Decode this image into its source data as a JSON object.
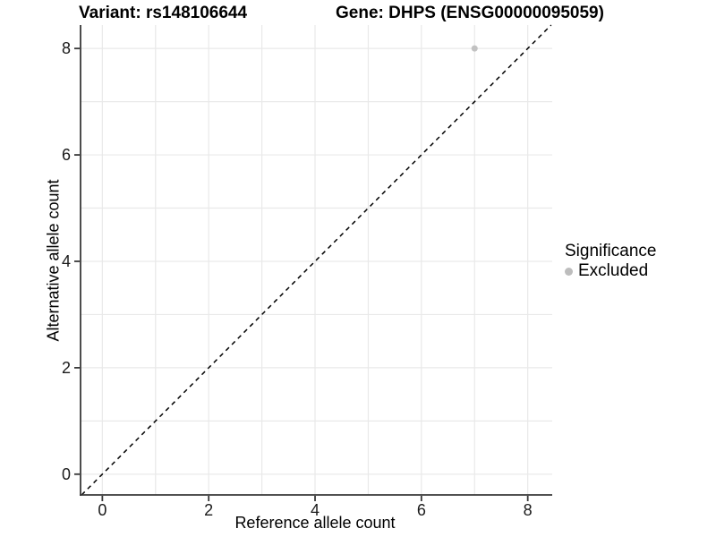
{
  "chart_data": {
    "type": "scatter",
    "titles": [
      "Variant: rs148106644",
      "Gene: DHPS (ENSG00000095059)"
    ],
    "xlabel": "Reference allele count",
    "ylabel": "Alternative allele count",
    "xlim": [
      -0.41,
      8.46
    ],
    "ylim": [
      -0.39,
      8.44
    ],
    "x_ticks": [
      0,
      2,
      4,
      6,
      8
    ],
    "y_ticks": [
      0,
      2,
      4,
      6,
      8
    ],
    "gridlines": {
      "min": 0,
      "max": 8,
      "every": 1,
      "visible": true
    },
    "points": [
      {
        "x": 7,
        "y": 8,
        "significance": "Excluded"
      }
    ],
    "identity_line": {
      "style": "dashed",
      "slope": 1,
      "intercept": 0
    },
    "legend": {
      "position": "right",
      "title": "Significance",
      "items": [
        {
          "label": "Excluded",
          "color": "#bdbdbd"
        }
      ]
    },
    "colors": {
      "point": "#c2c2c2",
      "grid": "#e9e9e9",
      "axis": "#383838",
      "dashed_line": "#000000",
      "tick_text": "#1a1a1a",
      "background": "#ffffff"
    }
  }
}
